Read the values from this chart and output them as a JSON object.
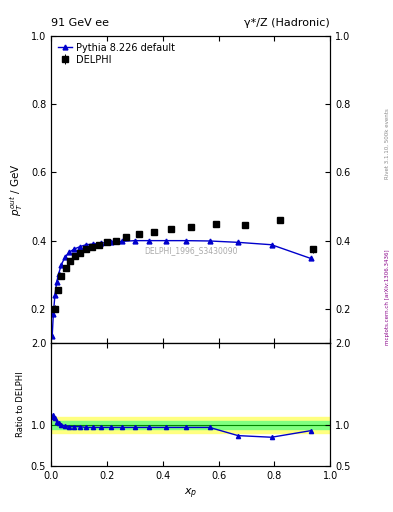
{
  "title_left": "91 GeV ee",
  "title_right": "γ*/Z (Hadronic)",
  "xlabel": "$x_p$",
  "ylabel_main": "$p_T^{out}$ / GeV",
  "ylabel_ratio": "Ratio to DELPHI",
  "watermark": "DELPHI_1996_S3430090",
  "right_label_top": "Rivet 3.1.10, 500k events",
  "right_label_bot": "mcplots.cern.ch [arXiv:1306.3436]",
  "delphi_x": [
    0.014,
    0.025,
    0.037,
    0.052,
    0.068,
    0.085,
    0.104,
    0.124,
    0.147,
    0.172,
    0.2,
    0.232,
    0.27,
    0.315,
    0.368,
    0.43,
    0.503,
    0.59,
    0.694,
    0.82,
    0.94
  ],
  "delphi_y": [
    0.2,
    0.255,
    0.295,
    0.32,
    0.34,
    0.355,
    0.365,
    0.375,
    0.382,
    0.388,
    0.395,
    0.4,
    0.41,
    0.418,
    0.425,
    0.435,
    0.44,
    0.448,
    0.445,
    0.46,
    0.375
  ],
  "delphi_yerr": [
    0.01,
    0.008,
    0.006,
    0.005,
    0.004,
    0.004,
    0.003,
    0.003,
    0.003,
    0.003,
    0.003,
    0.003,
    0.003,
    0.003,
    0.003,
    0.003,
    0.003,
    0.004,
    0.004,
    0.006,
    0.01
  ],
  "pythia_x": [
    0.004,
    0.008,
    0.014,
    0.02,
    0.027,
    0.037,
    0.05,
    0.065,
    0.082,
    0.102,
    0.125,
    0.15,
    0.18,
    0.215,
    0.255,
    0.3,
    0.352,
    0.412,
    0.483,
    0.568,
    0.67,
    0.79,
    0.93
  ],
  "pythia_y": [
    0.12,
    0.185,
    0.242,
    0.278,
    0.303,
    0.33,
    0.352,
    0.366,
    0.375,
    0.382,
    0.388,
    0.39,
    0.393,
    0.396,
    0.398,
    0.4,
    0.4,
    0.4,
    0.4,
    0.399,
    0.395,
    0.388,
    0.348
  ],
  "ratio_pythia_x": [
    0.004,
    0.008,
    0.014,
    0.02,
    0.027,
    0.037,
    0.05,
    0.065,
    0.082,
    0.102,
    0.125,
    0.15,
    0.18,
    0.215,
    0.255,
    0.3,
    0.352,
    0.412,
    0.483,
    0.568,
    0.67,
    0.79,
    0.93
  ],
  "ratio_pythia_y": [
    1.1,
    1.12,
    1.08,
    1.04,
    1.02,
    1.0,
    0.99,
    0.98,
    0.98,
    0.98,
    0.97,
    0.97,
    0.97,
    0.97,
    0.97,
    0.97,
    0.97,
    0.97,
    0.97,
    0.97,
    0.87,
    0.85,
    0.93
  ],
  "band_yellow_lo": 0.9,
  "band_yellow_hi": 1.1,
  "band_green_lo": 0.95,
  "band_green_hi": 1.05,
  "main_ylim": [
    0.1,
    1.0
  ],
  "main_yticks": [
    0.2,
    0.4,
    0.6,
    0.8,
    1.0
  ],
  "ratio_ylim": [
    0.5,
    2.0
  ],
  "ratio_yticks": [
    0.5,
    1.0,
    2.0
  ],
  "xlim": [
    0.0,
    1.0
  ],
  "color_delphi": "#000000",
  "color_pythia": "#0000cc",
  "color_band_yellow": "#ffff80",
  "color_band_green": "#80ff80",
  "color_ref_line": "#008800",
  "legend_delphi": "DELPHI",
  "legend_pythia": "Pythia 8.226 default"
}
